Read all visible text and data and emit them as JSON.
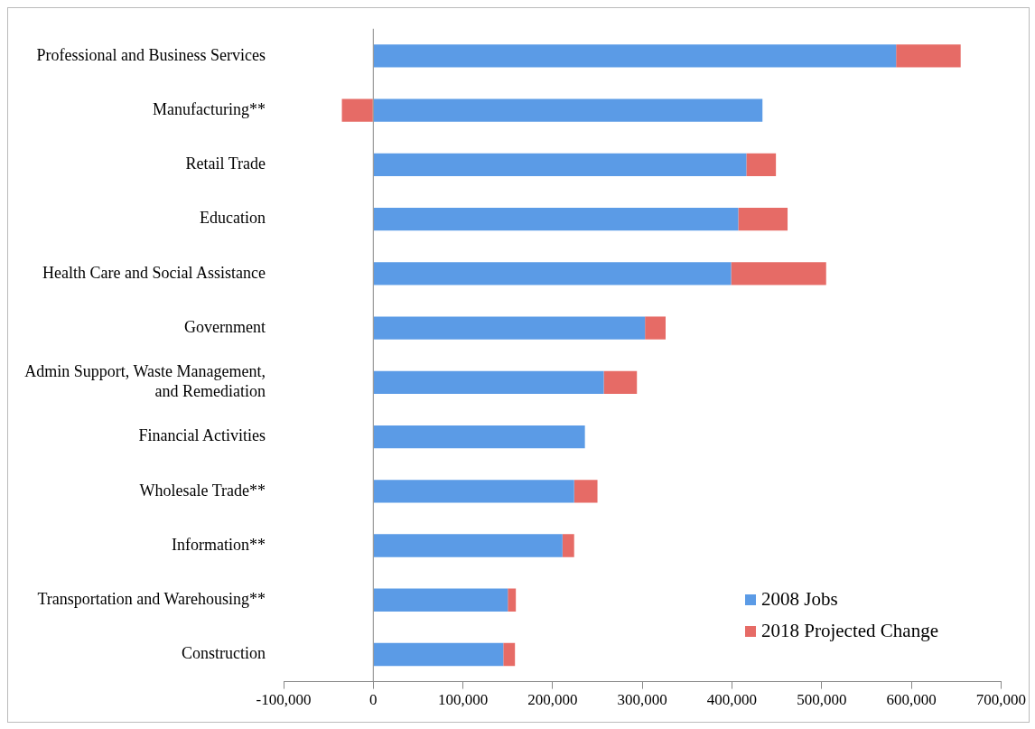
{
  "chart_data": {
    "type": "bar",
    "orientation": "horizontal",
    "stacked": true,
    "categories": [
      "Professional and Business Services",
      "Manufacturing**",
      "Retail Trade",
      "Education",
      "Health Care and Social Assistance",
      "Government",
      "Admin Support, Waste Management, and Remediation",
      "Financial Activities",
      "Wholesale Trade**",
      "Information**",
      "Transportation and Warehousing**",
      "Construction"
    ],
    "series": [
      {
        "name": "2008 Jobs",
        "color": "#5b9be6",
        "values": [
          583000,
          434000,
          416000,
          407000,
          399000,
          303000,
          257000,
          236000,
          224000,
          211000,
          150000,
          145000
        ]
      },
      {
        "name": "2018 Projected Change",
        "color": "#e66b66",
        "values": [
          72000,
          -35000,
          33000,
          55000,
          106000,
          23000,
          37000,
          0,
          26000,
          13000,
          9000,
          13000
        ]
      }
    ],
    "xlim": [
      -100000,
      700000
    ],
    "xticks": [
      {
        "value": -100000,
        "label": "-100,000"
      },
      {
        "value": 0,
        "label": "0"
      },
      {
        "value": 100000,
        "label": "100,000"
      },
      {
        "value": 200000,
        "label": "200,000"
      },
      {
        "value": 300000,
        "label": "300,000"
      },
      {
        "value": 400000,
        "label": "400,000"
      },
      {
        "value": 500000,
        "label": "500,000"
      },
      {
        "value": 600000,
        "label": "600,000"
      },
      {
        "value": 700000,
        "label": "700,000"
      }
    ],
    "ref_lines": [
      {
        "axis": "x",
        "value": 0,
        "color": "#888888"
      }
    ],
    "legend": "bottom right",
    "grid": false
  }
}
